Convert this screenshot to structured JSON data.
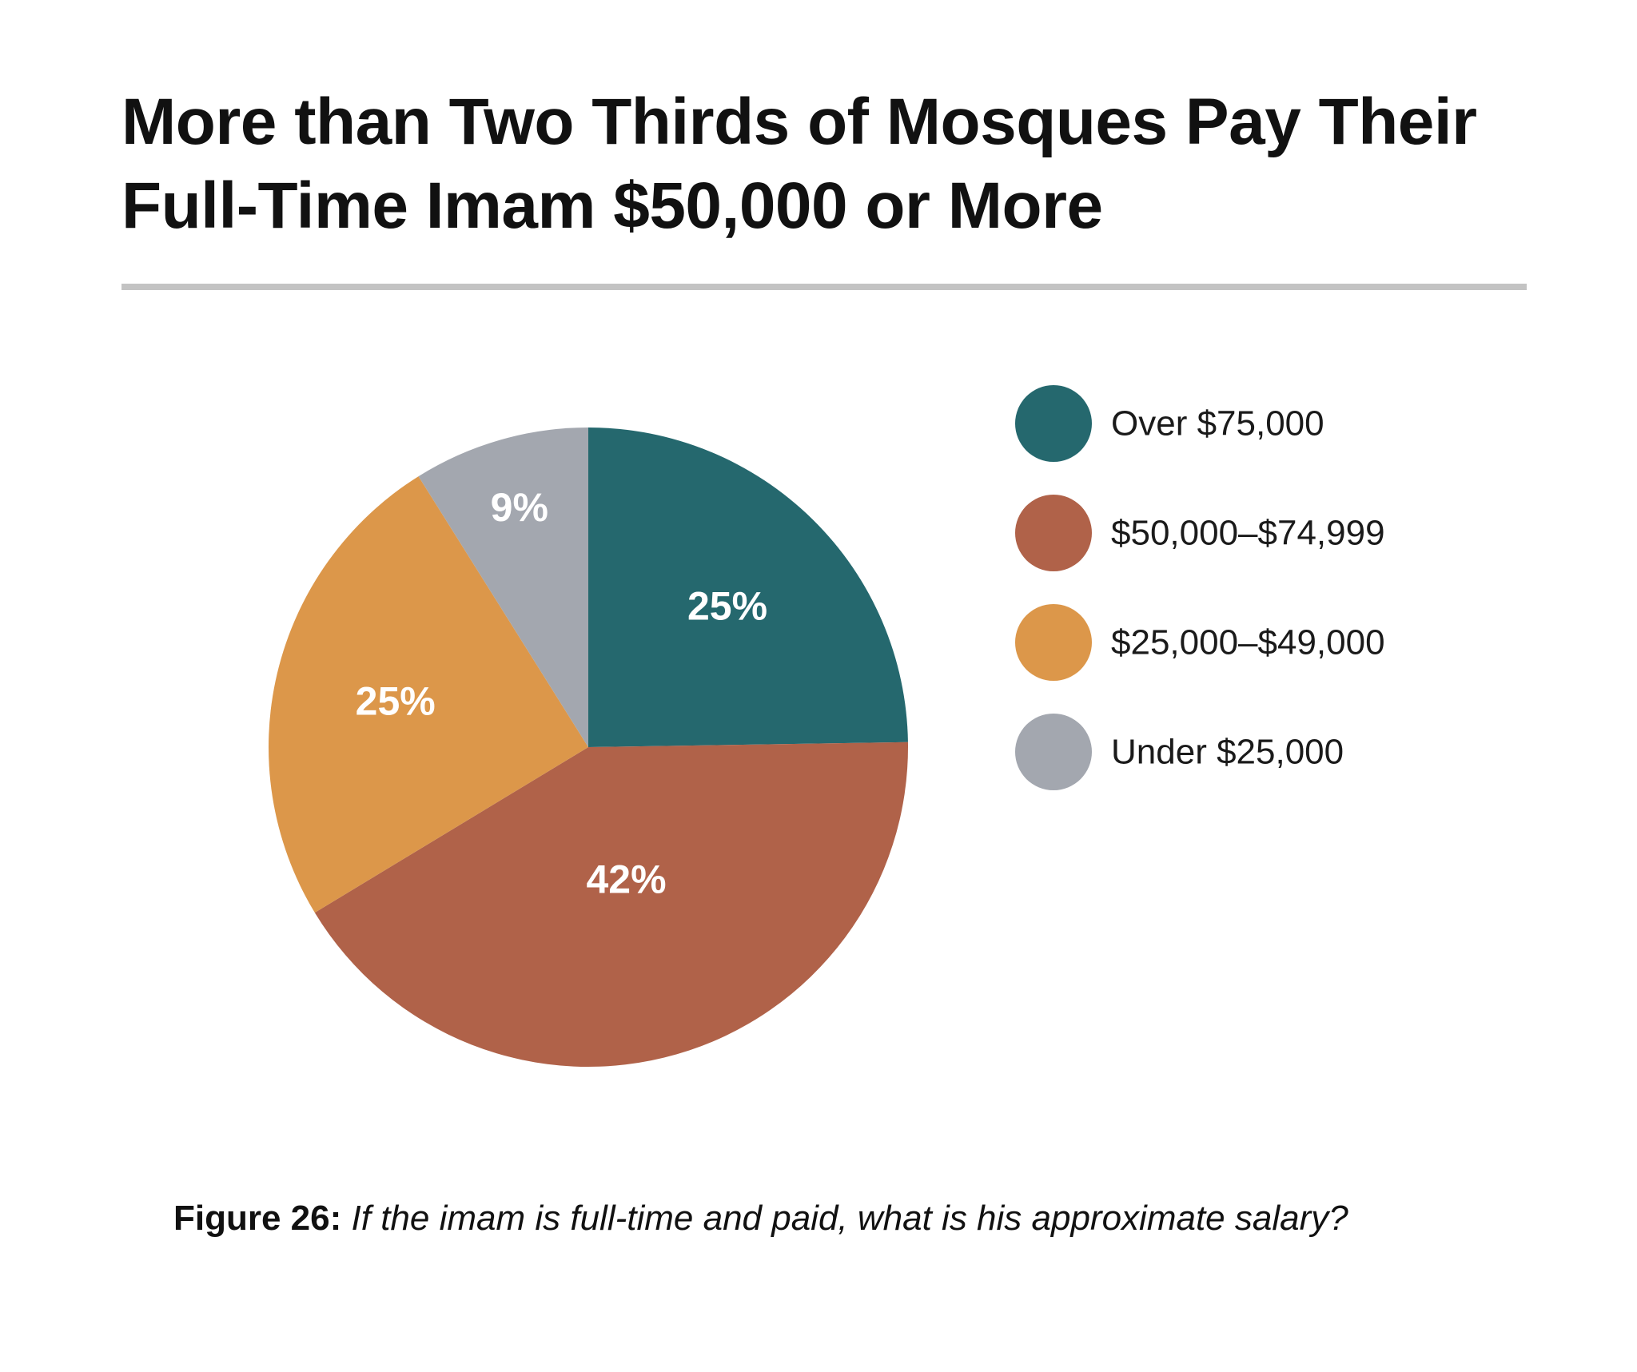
{
  "title": {
    "line1": "More than Two Thirds of Mosques Pay Their",
    "line2": "Full-Time Imam $50,000 or More"
  },
  "caption": {
    "figure_label": "Figure 26:",
    "question": "If the imam is full-time and paid, what is his approximate salary?"
  },
  "colors": {
    "teal": "#25686e",
    "rust": "#b06249",
    "orange": "#dc974a",
    "gray": "#a3a7af",
    "rule": "#c3c3c3"
  },
  "chart_data": {
    "type": "pie",
    "title": "More than Two Thirds of Mosques Pay Their Full-Time Imam $50,000 or More",
    "start": "12 o'clock",
    "direction": "clockwise",
    "legend_placement": "right",
    "slices": [
      {
        "label": "Over $75,000",
        "value": 25,
        "display": "25%",
        "color": "#25686e"
      },
      {
        "label": "$50,000–$74,999",
        "value": 42,
        "display": "42%",
        "color": "#b06249"
      },
      {
        "label": "$25,000–$49,000",
        "value": 25,
        "display": "25%",
        "color": "#dc974a"
      },
      {
        "label": "Under $25,000",
        "value": 9,
        "display": "9%",
        "color": "#a3a7af"
      }
    ]
  }
}
